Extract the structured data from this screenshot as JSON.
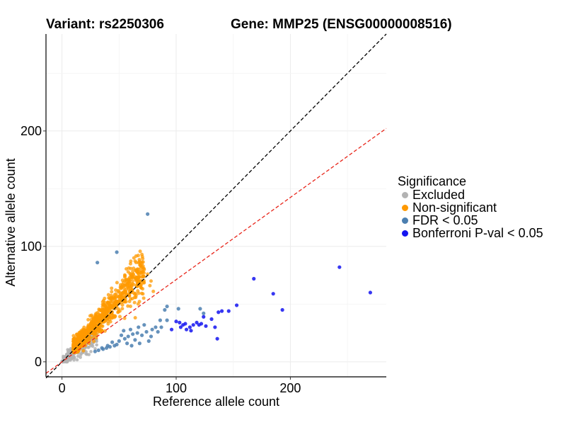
{
  "title_left": "Variant: rs2250306",
  "title_right": "Gene: MMP25 (ENSG00000008516)",
  "chart_data": {
    "type": "scatter",
    "xlabel": "Reference allele count",
    "ylabel": "Alternative allele count",
    "xlim": [
      -14,
      284
    ],
    "ylim": [
      -13,
      284
    ],
    "x_ticks": [
      0,
      100,
      200
    ],
    "y_ticks": [
      0,
      100,
      200
    ],
    "grid": true,
    "reference_lines": [
      {
        "name": "y = x",
        "slope": 1,
        "intercept": 0,
        "color": "#000000",
        "style": "dashed"
      },
      {
        "name": "fitted ratio",
        "slope": 0.712,
        "intercept": 0,
        "color": "#e8251a",
        "style": "dashed"
      }
    ],
    "legend": {
      "title": "Significance",
      "position": "right",
      "entries": [
        {
          "label": "Excluded",
          "color": "#b3b3b3"
        },
        {
          "label": "Non-significant",
          "color": "#ff9900"
        },
        {
          "label": "FDR < 0.05",
          "color": "#4b7fb0"
        },
        {
          "label": "Bonferroni P-val < 0.05",
          "color": "#1414f0"
        }
      ]
    },
    "series": [
      {
        "name": "Bonferroni P-val < 0.05",
        "color": "#1414f0",
        "points": [
          [
            243,
            82
          ],
          [
            270,
            60
          ],
          [
            168,
            72
          ],
          [
            185,
            59
          ],
          [
            193,
            45
          ],
          [
            153,
            49
          ],
          [
            146,
            44
          ],
          [
            140,
            44
          ],
          [
            137,
            43
          ],
          [
            131,
            37
          ],
          [
            124,
            39
          ],
          [
            118,
            34
          ],
          [
            122,
            33
          ],
          [
            115,
            32
          ],
          [
            106,
            32
          ],
          [
            109,
            28
          ],
          [
            108,
            33
          ],
          [
            103,
            34
          ],
          [
            100,
            35
          ],
          [
            96,
            28
          ],
          [
            104,
            30
          ],
          [
            112,
            30
          ],
          [
            120,
            32
          ],
          [
            126,
            31
          ],
          [
            134,
            30
          ],
          [
            136,
            20
          ],
          [
            113,
            27
          ]
        ]
      },
      {
        "name": "FDR < 0.05",
        "color": "#4b7fb0",
        "points": [
          [
            75,
            128
          ],
          [
            48,
            95
          ],
          [
            31,
            86
          ],
          [
            92,
            48
          ],
          [
            102,
            46
          ],
          [
            121,
            46
          ],
          [
            124,
            42
          ],
          [
            90,
            45
          ],
          [
            86,
            36
          ],
          [
            82,
            30
          ],
          [
            79,
            28
          ],
          [
            74,
            26
          ],
          [
            70,
            23
          ],
          [
            67,
            30
          ],
          [
            62,
            24
          ],
          [
            58,
            22
          ],
          [
            55,
            20
          ],
          [
            54,
            27
          ],
          [
            64,
            19
          ],
          [
            50,
            18
          ],
          [
            48,
            15
          ],
          [
            46,
            14
          ],
          [
            42,
            13
          ],
          [
            39,
            12
          ],
          [
            36,
            11
          ],
          [
            32,
            10
          ],
          [
            29,
            9
          ],
          [
            44,
            17
          ],
          [
            52,
            23
          ],
          [
            60,
            28
          ],
          [
            66,
            25
          ],
          [
            72,
            32
          ],
          [
            78,
            22
          ],
          [
            84,
            26
          ],
          [
            76,
            18
          ],
          [
            68,
            16
          ],
          [
            40,
            14
          ],
          [
            35,
            12
          ],
          [
            57,
            16
          ],
          [
            61,
            14
          ],
          [
            87,
            30
          ],
          [
            92,
            36
          ]
        ]
      }
    ]
  }
}
